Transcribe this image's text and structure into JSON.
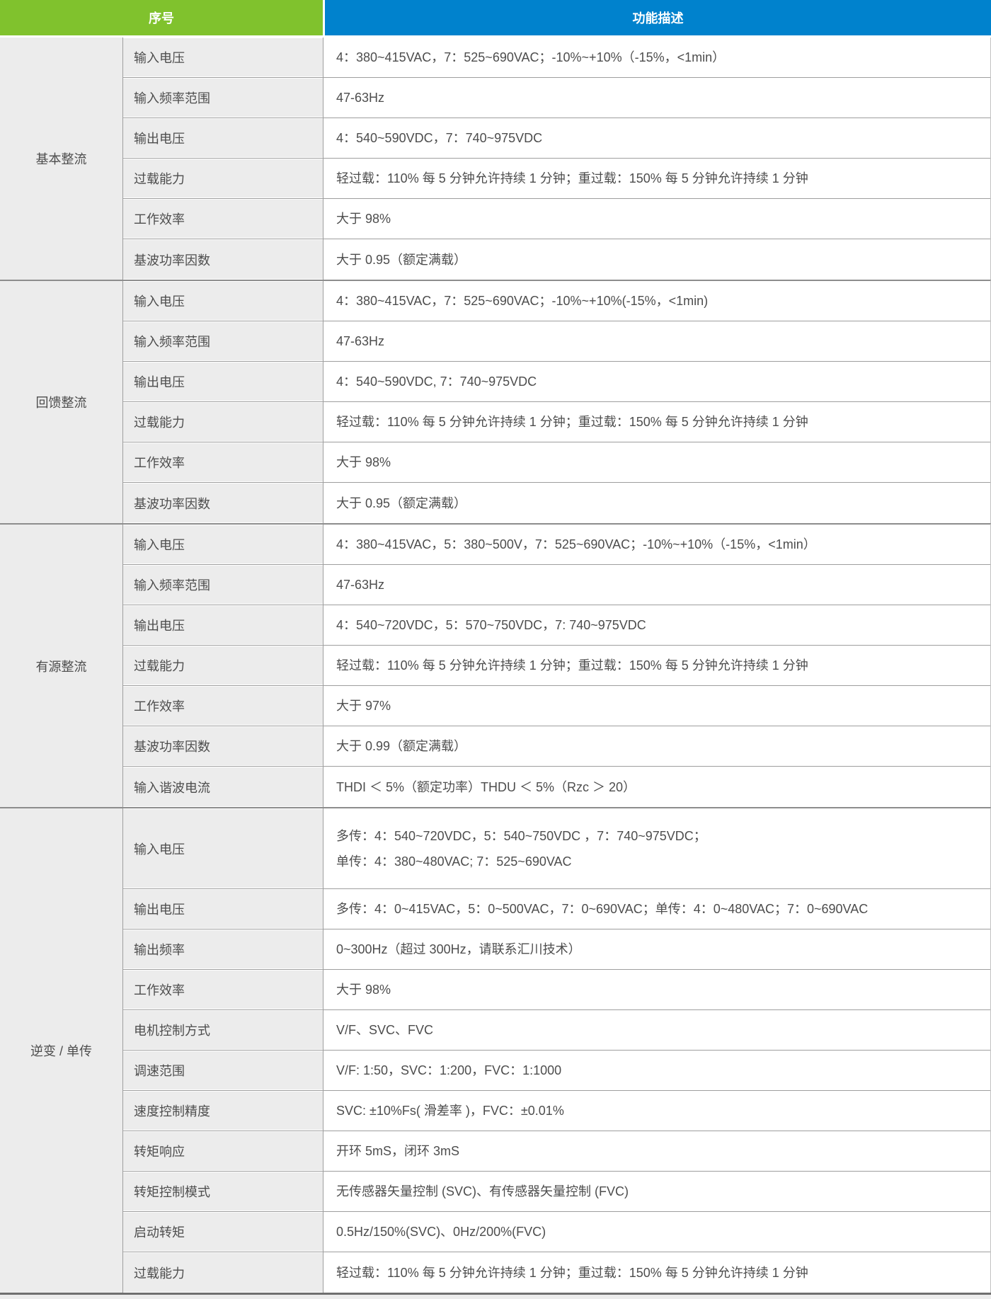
{
  "colors": {
    "header_serial_bg": "#80c22d",
    "header_func_bg": "#0082cd",
    "label_cell_bg": "#ececec",
    "desc_cell_bg": "#ffffff",
    "text": "#4d4d4d",
    "row_divider": "#9e9e9e",
    "section_divider": "#8d8d8d"
  },
  "header": {
    "serial": "序号",
    "function": "功能描述"
  },
  "sections": [
    {
      "name": "基本整流",
      "rows": [
        {
          "label": "输入电压",
          "desc": "4：380~415VAC，7：525~690VAC；-10%~+10%（-15%，<1min）"
        },
        {
          "label": "输入频率范围",
          "desc": "47-63Hz"
        },
        {
          "label": "输出电压",
          "desc": "4：540~590VDC，7：740~975VDC"
        },
        {
          "label": "过载能力",
          "desc": "轻过载：110% 每 5 分钟允许持续 1 分钟；重过载：150% 每 5 分钟允许持续 1 分钟"
        },
        {
          "label": "工作效率",
          "desc": "大于 98%"
        },
        {
          "label": "基波功率因数",
          "desc": "大于 0.95（额定满载）"
        }
      ]
    },
    {
      "name": "回馈整流",
      "rows": [
        {
          "label": "输入电压",
          "desc": "4：380~415VAC，7：525~690VAC；-10%~+10%(-15%，<1min)"
        },
        {
          "label": "输入频率范围",
          "desc": "47-63Hz"
        },
        {
          "label": "输出电压",
          "desc": "4：540~590VDC, 7：740~975VDC"
        },
        {
          "label": "过载能力",
          "desc": "轻过载：110% 每 5 分钟允许持续 1 分钟；重过载：150% 每 5 分钟允许持续 1 分钟"
        },
        {
          "label": "工作效率",
          "desc": "大于 98%"
        },
        {
          "label": "基波功率因数",
          "desc": "大于 0.95（额定满载）"
        }
      ]
    },
    {
      "name": "有源整流",
      "rows": [
        {
          "label": "输入电压",
          "desc": "4：380~415VAC，5：380~500V，7：525~690VAC；-10%~+10%（-15%，<1min）"
        },
        {
          "label": "输入频率范围",
          "desc": "47-63Hz"
        },
        {
          "label": "输出电压",
          "desc": "4：540~720VDC，5：570~750VDC，7: 740~975VDC"
        },
        {
          "label": "过载能力",
          "desc": "轻过载：110% 每 5 分钟允许持续 1 分钟；重过载：150% 每 5 分钟允许持续 1 分钟"
        },
        {
          "label": "工作效率",
          "desc": "大于 97%"
        },
        {
          "label": "基波功率因数",
          "desc": "大于 0.99（额定满载）"
        },
        {
          "label": "输入谐波电流",
          "desc": "THDI ＜ 5%（额定功率）THDU ＜ 5%（Rzc ＞ 20）"
        }
      ]
    },
    {
      "name": "逆变 / 单传",
      "rows": [
        {
          "label": "输入电压",
          "desc": "多传：4：540~720VDC，5：540~750VDC ，7：740~975VDC；\n单传：4：380~480VAC; 7：525~690VAC"
        },
        {
          "label": "输出电压",
          "desc": "多传：4：0~415VAC，5：0~500VAC，7：0~690VAC；单传：4：0~480VAC；7：0~690VAC"
        },
        {
          "label": "输出频率",
          "desc": "0~300Hz（超过 300Hz，请联系汇川技术）"
        },
        {
          "label": "工作效率",
          "desc": "大于 98%"
        },
        {
          "label": "电机控制方式",
          "desc": "V/F、SVC、FVC"
        },
        {
          "label": "调速范围",
          "desc": "V/F: 1:50，SVC：1:200，FVC：1:1000"
        },
        {
          "label": "速度控制精度",
          "desc": "SVC: ±10%Fs( 滑差率 )，FVC：±0.01%"
        },
        {
          "label": "转矩响应",
          "desc": "开环 5mS，闭环 3mS"
        },
        {
          "label": "转矩控制模式",
          "desc": "无传感器矢量控制 (SVC)、有传感器矢量控制 (FVC)"
        },
        {
          "label": "启动转矩",
          "desc": "0.5Hz/150%(SVC)、0Hz/200%(FVC)"
        },
        {
          "label": "过载能力",
          "desc": "轻过载：110% 每 5 分钟允许持续 1 分钟；重过载：150% 每 5 分钟允许持续 1 分钟"
        }
      ]
    }
  ]
}
